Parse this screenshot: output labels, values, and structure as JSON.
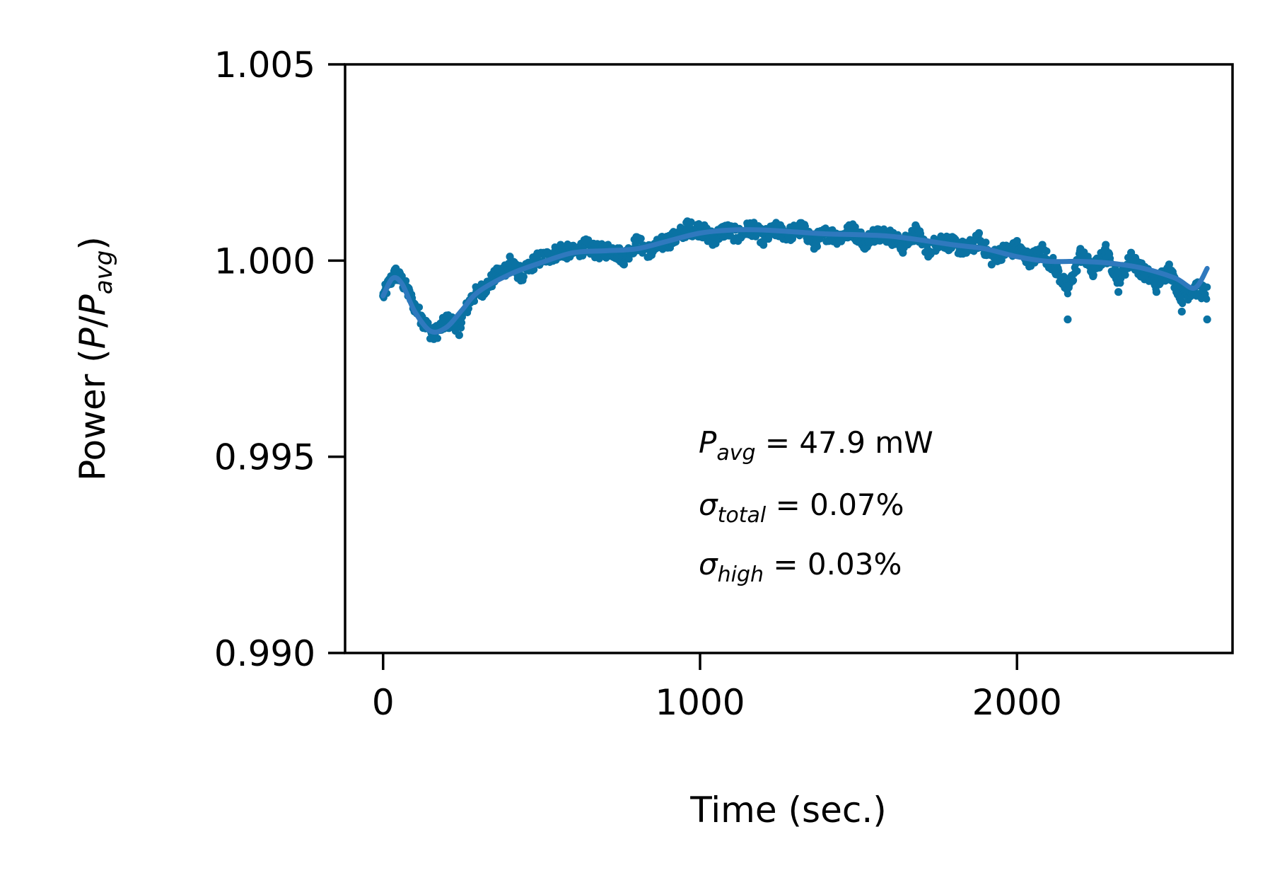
{
  "chart_data": {
    "type": "scatter",
    "xlabel": "Time (sec.)",
    "ylabel": {
      "prefix": "Power (",
      "P": "P",
      "slash": "/",
      "P2": "P",
      "sub": "avg",
      "suffix": ")"
    },
    "xlim": [
      -120,
      2680
    ],
    "ylim": [
      0.99,
      1.005
    ],
    "xticks": [
      0,
      1000,
      2000
    ],
    "xtick_labels": [
      "0",
      "1000",
      "2000"
    ],
    "yticks": [
      0.99,
      0.995,
      1.0,
      1.005
    ],
    "ytick_labels": [
      "0.990",
      "0.995",
      "1.000",
      "1.005"
    ],
    "grid": false,
    "colors": {
      "points": "#0a72a3",
      "trend": "#2f79be",
      "axes": "#000000"
    },
    "annotation": {
      "line1": {
        "sym": "P",
        "sub": "avg",
        "text": " = 47.9 mW"
      },
      "line2": {
        "sym": "σ",
        "sub": "total",
        "text": " = 0.07%"
      },
      "line3": {
        "sym": "σ",
        "sub": "high",
        "text": " = 0.03%"
      }
    },
    "trend": {
      "x": [
        0,
        30,
        60,
        100,
        150,
        200,
        250,
        300,
        400,
        500,
        600,
        700,
        800,
        900,
        1000,
        1100,
        1200,
        1300,
        1400,
        1500,
        1600,
        1700,
        1800,
        1900,
        2000,
        2100,
        2200,
        2300,
        2400,
        2500,
        2560,
        2600
      ],
      "y": [
        0.9991,
        0.99955,
        0.9994,
        0.9987,
        0.9982,
        0.9983,
        0.99875,
        0.9992,
        0.99965,
        0.99995,
        1.0002,
        1.00025,
        1.0003,
        1.0005,
        1.0007,
        1.00078,
        1.00078,
        1.00073,
        1.00068,
        1.00066,
        1.00062,
        1.00052,
        1.0004,
        1.0003,
        1.0001,
        0.99998,
        0.99998,
        0.99993,
        0.9998,
        0.99955,
        0.9993,
        0.9998
      ]
    },
    "points": {
      "x": [
        0,
        40,
        80,
        120,
        160,
        200,
        240,
        280,
        320,
        360,
        400,
        440,
        480,
        520,
        560,
        600,
        640,
        680,
        720,
        760,
        800,
        840,
        880,
        920,
        960,
        1000,
        1040,
        1080,
        1120,
        1160,
        1200,
        1240,
        1280,
        1320,
        1360,
        1400,
        1440,
        1480,
        1520,
        1560,
        1600,
        1640,
        1680,
        1720,
        1760,
        1800,
        1840,
        1880,
        1920,
        1960,
        2000,
        2040,
        2080,
        2120,
        2160,
        2200,
        2240,
        2280,
        2320,
        2360,
        2400,
        2440,
        2480,
        2520,
        2560,
        2600
      ],
      "y": [
        0.9991,
        0.9998,
        0.9993,
        0.9986,
        0.998,
        0.9986,
        0.9981,
        0.9991,
        0.9993,
        0.9998,
        1.0001,
        0.9995,
        1.0001,
        1.0002,
        1.0004,
        1.0002,
        1.0005,
        1.0002,
        1.0003,
        0.9999,
        1.0006,
        1.0001,
        1.0004,
        1.0006,
        1.001,
        1.0009,
        1.0004,
        1.0008,
        1.0005,
        1.0009,
        1.0004,
        1.0008,
        1.0006,
        1.0009,
        1.0003,
        1.0007,
        1.0005,
        1.0009,
        1.0003,
        1.0008,
        1.0006,
        1.0002,
        1.0009,
        1.0001,
        1.0006,
        1.0004,
        1.0002,
        1.0007,
        0.9999,
        1.0003,
        1.0005,
        1.0,
        1.0004,
        0.9997,
        0.9985,
        1.0003,
        0.9996,
        1.0004,
        0.9992,
        1.0002,
        0.9996,
        0.9992,
        0.9999,
        0.9987,
        0.9993,
        0.9985
      ]
    },
    "jitter": 0.0004,
    "points_per_second": 0.5
  }
}
